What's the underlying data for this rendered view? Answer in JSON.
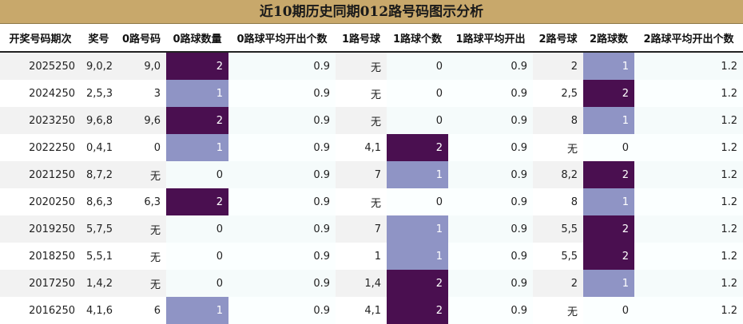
{
  "title": "近10期历史同期012路号码图示分析",
  "headers": [
    "开奖号码期次",
    "奖号",
    "0路号码",
    "0路球数量",
    "0路球平均开出个数",
    "1路号球",
    "1路球个数",
    "1路球平均开出",
    "2路号球",
    "2路球数",
    "2路球平均开出个数"
  ],
  "rows": [
    {
      "issue": "2025250",
      "nums": "9,0,2",
      "r0": "9,0",
      "c0": "2",
      "a0": "0.9",
      "r1": "无",
      "c1": "0",
      "a1": "0.9",
      "r2": "2",
      "c2": "1",
      "a2": "1.2"
    },
    {
      "issue": "2024250",
      "nums": "2,5,3",
      "r0": "3",
      "c0": "1",
      "a0": "0.9",
      "r1": "无",
      "c1": "0",
      "a1": "0.9",
      "r2": "2,5",
      "c2": "2",
      "a2": "1.2"
    },
    {
      "issue": "2023250",
      "nums": "9,6,8",
      "r0": "9,6",
      "c0": "2",
      "a0": "0.9",
      "r1": "无",
      "c1": "0",
      "a1": "0.9",
      "r2": "8",
      "c2": "1",
      "a2": "1.2"
    },
    {
      "issue": "2022250",
      "nums": "0,4,1",
      "r0": "0",
      "c0": "1",
      "a0": "0.9",
      "r1": "4,1",
      "c1": "2",
      "a1": "0.9",
      "r2": "无",
      "c2": "0",
      "a2": "1.2"
    },
    {
      "issue": "2021250",
      "nums": "8,7,2",
      "r0": "无",
      "c0": "0",
      "a0": "0.9",
      "r1": "7",
      "c1": "1",
      "a1": "0.9",
      "r2": "8,2",
      "c2": "2",
      "a2": "1.2"
    },
    {
      "issue": "2020250",
      "nums": "8,6,3",
      "r0": "6,3",
      "c0": "2",
      "a0": "0.9",
      "r1": "无",
      "c1": "0",
      "a1": "0.9",
      "r2": "8",
      "c2": "1",
      "a2": "1.2"
    },
    {
      "issue": "2019250",
      "nums": "5,7,5",
      "r0": "无",
      "c0": "0",
      "a0": "0.9",
      "r1": "7",
      "c1": "1",
      "a1": "0.9",
      "r2": "5,5",
      "c2": "2",
      "a2": "1.2"
    },
    {
      "issue": "2018250",
      "nums": "5,5,1",
      "r0": "无",
      "c0": "0",
      "a0": "0.9",
      "r1": "1",
      "c1": "1",
      "a1": "0.9",
      "r2": "5,5",
      "c2": "2",
      "a2": "1.2"
    },
    {
      "issue": "2017250",
      "nums": "1,4,2",
      "r0": "无",
      "c0": "0",
      "a0": "0.9",
      "r1": "1,4",
      "c1": "2",
      "a1": "0.9",
      "r2": "2",
      "c2": "1",
      "a2": "1.2"
    },
    {
      "issue": "2016250",
      "nums": "4,1,6",
      "r0": "6",
      "c0": "1",
      "a0": "0.9",
      "r1": "4,1",
      "c1": "2",
      "a1": "0.9",
      "r2": "无",
      "c2": "0",
      "a2": "1.2"
    }
  ],
  "colors": {
    "header_bg": "#c8a86b",
    "count_2": "#4a0f50",
    "count_1": "#8f94c5",
    "stripe": "#f2f2f2"
  }
}
